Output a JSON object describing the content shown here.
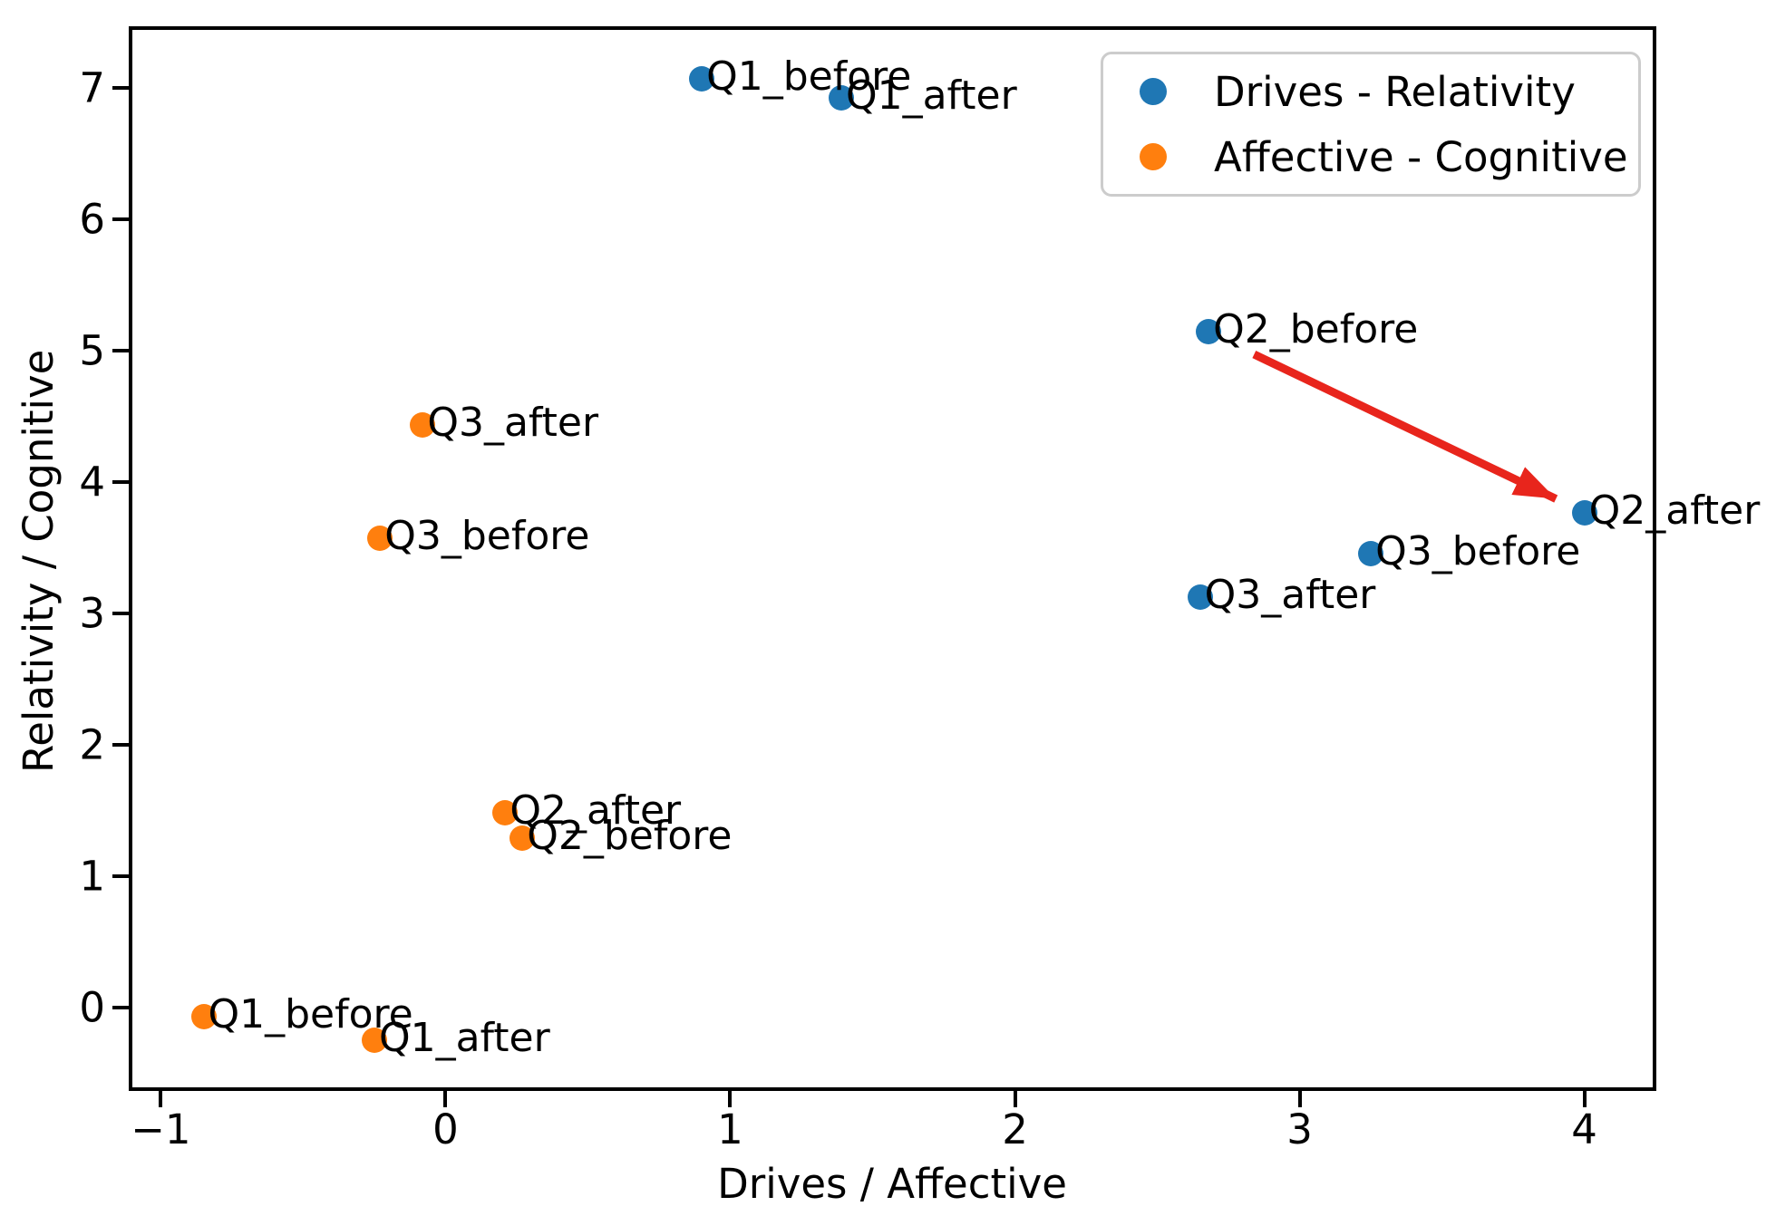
{
  "figure": {
    "background_color": "#ffffff",
    "text_color": "#000000"
  },
  "chart_data": {
    "type": "scatter",
    "title": "",
    "xlabel": "Drives / Affective",
    "ylabel": "Relativity / Cognitive",
    "xlim": [
      -1.1,
      4.24
    ],
    "ylim": [
      -0.61,
      7.44
    ],
    "xticks": [
      -1,
      0,
      1,
      2,
      3,
      4
    ],
    "xtick_labels": [
      "−1",
      "0",
      "1",
      "2",
      "3",
      "4"
    ],
    "yticks": [
      0,
      1,
      2,
      3,
      4,
      5,
      6,
      7
    ],
    "ytick_labels": [
      "0",
      "1",
      "2",
      "3",
      "4",
      "5",
      "6",
      "7"
    ],
    "grid": false,
    "legend_position": "upper right",
    "series": [
      {
        "name": "Drives - Relativity",
        "color": "#1f77b4",
        "points": [
          {
            "label": "Q1_before",
            "x": 0.9,
            "y": 7.07
          },
          {
            "label": "Q1_after",
            "x": 1.39,
            "y": 6.92
          },
          {
            "label": "Q2_before",
            "x": 2.68,
            "y": 5.14
          },
          {
            "label": "Q2_after",
            "x": 4.0,
            "y": 3.76
          },
          {
            "label": "Q3_before",
            "x": 3.25,
            "y": 3.45
          },
          {
            "label": "Q3_after",
            "x": 2.65,
            "y": 3.12
          }
        ]
      },
      {
        "name": "Affective - Cognitive",
        "color": "#ff7f0e",
        "points": [
          {
            "label": "Q1_before",
            "x": -0.85,
            "y": -0.07
          },
          {
            "label": "Q1_after",
            "x": -0.25,
            "y": -0.25
          },
          {
            "label": "Q2_before",
            "x": 0.27,
            "y": 1.29
          },
          {
            "label": "Q2_after",
            "x": 0.21,
            "y": 1.48
          },
          {
            "label": "Q3_before",
            "x": -0.23,
            "y": 3.57
          },
          {
            "label": "Q3_after",
            "x": -0.08,
            "y": 4.43
          }
        ]
      }
    ],
    "annotation_arrow": {
      "color": "#e8251c",
      "from": {
        "x": 2.84,
        "y": 4.97
      },
      "to": {
        "x": 3.9,
        "y": 3.87
      }
    }
  }
}
